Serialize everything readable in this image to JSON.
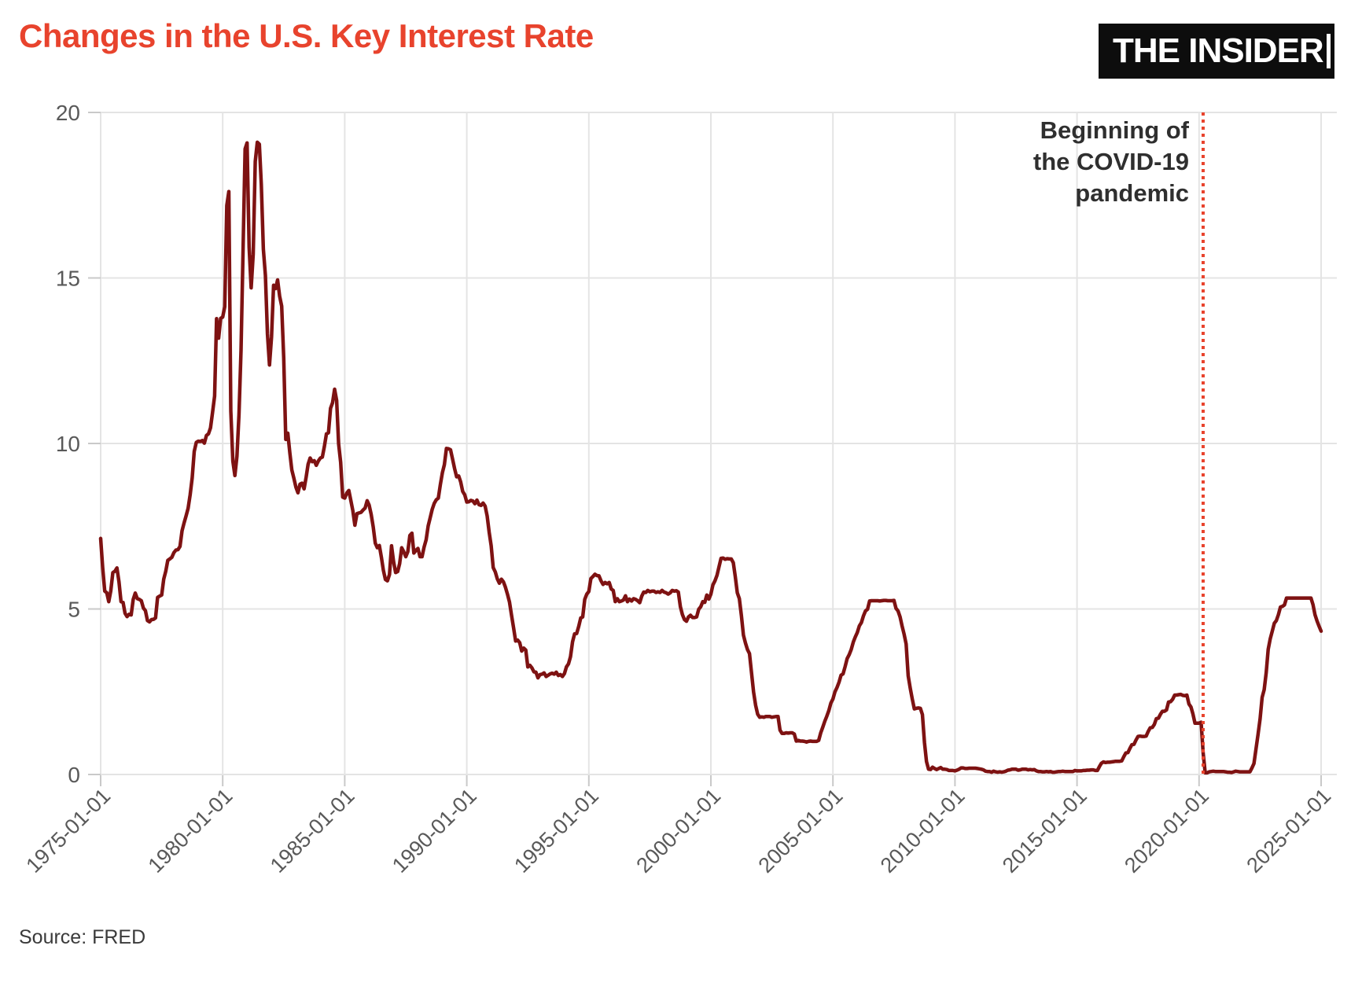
{
  "header": {
    "title": "Changes in the U.S. Key Interest Rate",
    "title_color": "#e8432d",
    "logo": {
      "text": "THE INSIDER",
      "bg": "#0d0d0d",
      "fg": "#ffffff"
    }
  },
  "annotation": {
    "text": "Beginning of\nthe COVID-19\npandemic",
    "date": "2020-03-01",
    "line_color": "#e8432d"
  },
  "footer": {
    "source": "Source: FRED"
  },
  "chart_data": {
    "type": "line",
    "title": "Changes in the U.S. Key Interest Rate",
    "series_name": "U.S. key interest rate (%)",
    "line_color": "#7e1212",
    "grid": true,
    "gridline_color": "#e4e4e4",
    "tick_color": "#c9c9c9",
    "axis_label_color": "#595959",
    "ylim": [
      0,
      20
    ],
    "y_ticks": [
      0,
      5,
      10,
      15,
      20
    ],
    "x_start": "1975-01",
    "x_frequency_months": 1,
    "x_tick_labels": [
      "1975-01-01",
      "1980-01-01",
      "1985-01-01",
      "1990-01-01",
      "1995-01-01",
      "2000-01-01",
      "2005-01-01",
      "2010-01-01",
      "2015-01-01",
      "2020-01-01",
      "2025-01-01"
    ],
    "x_tick_month_step": 60,
    "values": [
      7.13,
      6.24,
      5.54,
      5.49,
      5.22,
      5.55,
      6.1,
      6.14,
      6.24,
      5.82,
      5.22,
      5.2,
      4.87,
      4.77,
      4.84,
      4.82,
      5.29,
      5.48,
      5.31,
      5.29,
      5.25,
      5.03,
      4.95,
      4.65,
      4.61,
      4.68,
      4.69,
      4.73,
      5.35,
      5.39,
      5.42,
      5.9,
      6.14,
      6.47,
      6.51,
      6.56,
      6.7,
      6.78,
      6.79,
      6.89,
      7.36,
      7.6,
      7.81,
      8.04,
      8.45,
      8.96,
      9.76,
      10.03,
      10.07,
      10.06,
      10.09,
      10.01,
      10.24,
      10.29,
      10.47,
      10.94,
      11.43,
      13.77,
      13.18,
      13.78,
      13.82,
      14.13,
      17.19,
      17.61,
      10.98,
      9.47,
      9.03,
      9.61,
      10.87,
      12.81,
      15.85,
      18.9,
      19.08,
      15.93,
      14.7,
      15.72,
      18.52,
      19.1,
      19.04,
      17.82,
      15.87,
      15.08,
      13.31,
      12.37,
      13.22,
      14.78,
      14.68,
      14.94,
      14.45,
      14.15,
      12.59,
      10.12,
      10.31,
      9.71,
      9.2,
      8.95,
      8.68,
      8.51,
      8.77,
      8.8,
      8.63,
      8.98,
      9.37,
      9.56,
      9.45,
      9.48,
      9.34,
      9.47,
      9.56,
      9.59,
      9.91,
      10.29,
      10.32,
      11.06,
      11.23,
      11.64,
      11.3,
      9.99,
      9.43,
      8.38,
      8.35,
      8.5,
      8.58,
      8.27,
      7.97,
      7.53,
      7.88,
      7.9,
      7.92,
      7.99,
      8.05,
      8.27,
      8.14,
      7.86,
      7.48,
      6.99,
      6.85,
      6.92,
      6.56,
      6.17,
      5.89,
      5.85,
      6.04,
      6.91,
      6.43,
      6.1,
      6.13,
      6.37,
      6.85,
      6.73,
      6.58,
      6.73,
      7.22,
      7.29,
      6.69,
      6.77,
      6.83,
      6.58,
      6.58,
      6.87,
      7.09,
      7.51,
      7.75,
      8.01,
      8.19,
      8.3,
      8.35,
      8.76,
      9.12,
      9.36,
      9.85,
      9.84,
      9.81,
      9.53,
      9.24,
      8.99,
      9.02,
      8.84,
      8.55,
      8.45,
      8.23,
      8.24,
      8.28,
      8.26,
      8.18,
      8.29,
      8.15,
      8.13,
      8.2,
      8.11,
      7.81,
      7.31,
      6.91,
      6.25,
      6.12,
      5.91,
      5.78,
      5.9,
      5.82,
      5.66,
      5.45,
      5.21,
      4.81,
      4.43,
      4.03,
      4.06,
      3.98,
      3.73,
      3.82,
      3.76,
      3.25,
      3.3,
      3.22,
      3.1,
      3.09,
      2.92,
      3.02,
      3.03,
      3.07,
      2.96,
      3.0,
      3.04,
      3.06,
      3.03,
      3.09,
      2.99,
      3.02,
      2.96,
      3.05,
      3.25,
      3.34,
      3.56,
      4.01,
      4.25,
      4.26,
      4.47,
      4.73,
      4.76,
      5.29,
      5.45,
      5.53,
      5.92,
      5.98,
      6.05,
      6.01,
      6.0,
      5.85,
      5.74,
      5.8,
      5.76,
      5.8,
      5.6,
      5.56,
      5.22,
      5.31,
      5.22,
      5.24,
      5.27,
      5.4,
      5.22,
      5.3,
      5.24,
      5.31,
      5.29,
      5.25,
      5.19,
      5.39,
      5.51,
      5.5,
      5.56,
      5.52,
      5.54,
      5.54,
      5.5,
      5.52,
      5.5,
      5.56,
      5.51,
      5.49,
      5.45,
      5.49,
      5.56,
      5.54,
      5.55,
      5.51,
      5.07,
      4.83,
      4.68,
      4.63,
      4.76,
      4.81,
      4.74,
      4.74,
      4.76,
      4.99,
      5.07,
      5.22,
      5.2,
      5.42,
      5.3,
      5.45,
      5.73,
      5.85,
      6.02,
      6.27,
      6.53,
      6.54,
      6.5,
      6.52,
      6.51,
      6.51,
      6.4,
      5.98,
      5.49,
      5.31,
      4.8,
      4.21,
      3.97,
      3.77,
      3.65,
      3.07,
      2.49,
      2.09,
      1.82,
      1.73,
      1.74,
      1.73,
      1.75,
      1.75,
      1.75,
      1.73,
      1.74,
      1.75,
      1.75,
      1.34,
      1.24,
      1.24,
      1.26,
      1.25,
      1.26,
      1.26,
      1.22,
      1.01,
      1.03,
      1.01,
      1.01,
      1.0,
      0.98,
      1.0,
      1.01,
      1.0,
      1.0,
      1.0,
      1.03,
      1.26,
      1.43,
      1.61,
      1.76,
      1.93,
      2.16,
      2.28,
      2.5,
      2.63,
      2.79,
      3.0,
      3.04,
      3.26,
      3.5,
      3.62,
      3.78,
      4.0,
      4.16,
      4.29,
      4.49,
      4.59,
      4.79,
      4.94,
      4.99,
      5.24,
      5.25,
      5.25,
      5.25,
      5.25,
      5.24,
      5.25,
      5.26,
      5.26,
      5.25,
      5.25,
      5.25,
      5.26,
      5.02,
      4.94,
      4.76,
      4.49,
      4.24,
      3.94,
      2.98,
      2.61,
      2.28,
      1.98,
      2.0,
      2.01,
      2.0,
      1.81,
      0.97,
      0.39,
      0.16,
      0.15,
      0.22,
      0.18,
      0.15,
      0.18,
      0.21,
      0.16,
      0.16,
      0.15,
      0.12,
      0.12,
      0.12,
      0.11,
      0.13,
      0.16,
      0.2,
      0.2,
      0.18,
      0.18,
      0.19,
      0.19,
      0.19,
      0.19,
      0.18,
      0.17,
      0.16,
      0.14,
      0.1,
      0.09,
      0.09,
      0.07,
      0.1,
      0.08,
      0.07,
      0.08,
      0.07,
      0.08,
      0.1,
      0.13,
      0.14,
      0.16,
      0.16,
      0.16,
      0.13,
      0.14,
      0.16,
      0.16,
      0.16,
      0.14,
      0.15,
      0.14,
      0.15,
      0.11,
      0.09,
      0.09,
      0.08,
      0.08,
      0.09,
      0.08,
      0.09,
      0.07,
      0.07,
      0.08,
      0.09,
      0.09,
      0.1,
      0.09,
      0.09,
      0.09,
      0.09,
      0.09,
      0.12,
      0.11,
      0.11,
      0.11,
      0.12,
      0.12,
      0.13,
      0.13,
      0.14,
      0.14,
      0.12,
      0.12,
      0.24,
      0.34,
      0.38,
      0.36,
      0.37,
      0.37,
      0.38,
      0.39,
      0.4,
      0.4,
      0.4,
      0.41,
      0.54,
      0.65,
      0.66,
      0.79,
      0.9,
      0.91,
      1.04,
      1.15,
      1.16,
      1.15,
      1.15,
      1.16,
      1.3,
      1.41,
      1.42,
      1.51,
      1.69,
      1.7,
      1.82,
      1.91,
      1.91,
      1.95,
      2.19,
      2.2,
      2.27,
      2.4,
      2.4,
      2.41,
      2.42,
      2.39,
      2.38,
      2.4,
      2.13,
      2.04,
      1.83,
      1.55,
      1.55,
      1.55,
      1.58,
      0.65,
      0.05,
      0.05,
      0.08,
      0.09,
      0.1,
      0.09,
      0.09,
      0.09,
      0.09,
      0.09,
      0.08,
      0.07,
      0.07,
      0.06,
      0.08,
      0.1,
      0.09,
      0.08,
      0.08,
      0.08,
      0.08,
      0.08,
      0.08,
      0.2,
      0.33,
      0.77,
      1.21,
      1.68,
      2.33,
      2.56,
      3.08,
      3.78,
      4.1,
      4.33,
      4.57,
      4.65,
      4.83,
      5.06,
      5.08,
      5.12,
      5.33,
      5.33,
      5.33,
      5.33,
      5.33,
      5.33,
      5.33,
      5.33,
      5.33,
      5.33,
      5.33,
      5.33,
      5.33,
      5.13,
      4.83,
      4.64,
      4.48,
      4.33
    ]
  }
}
